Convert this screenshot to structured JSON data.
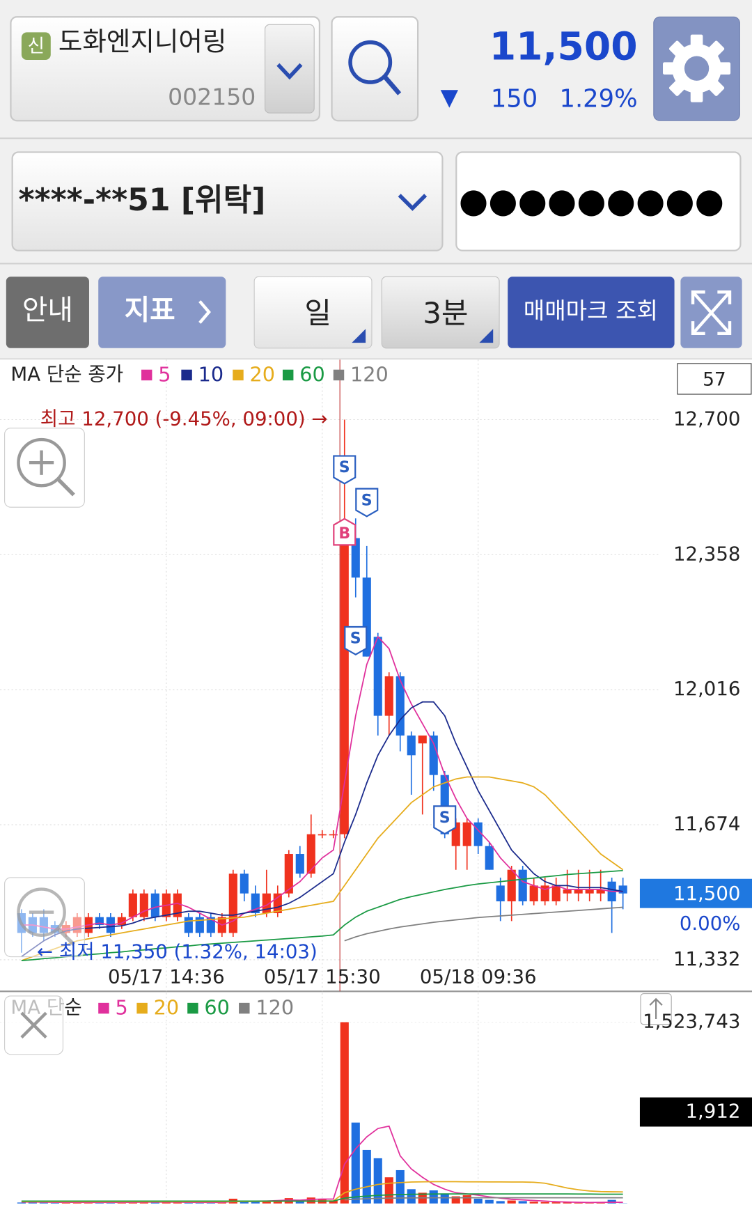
{
  "header": {
    "badge": "신",
    "name": "도화엔지니어링",
    "code": "002150",
    "price": "11,500",
    "change_arrow": "▼",
    "change": "150",
    "change_rate": "1.29%"
  },
  "account": {
    "number": "****-**51 [위탁]",
    "password": "●●●●●●●●●"
  },
  "toolbar": {
    "info": "안내",
    "indicator": "지표",
    "period": "일",
    "interval": "3분",
    "trade_marks": "매매마크 조회"
  },
  "chart_data": [
    {
      "type": "candlestick",
      "legend_title": "MA 단순 종가",
      "count_box": "57",
      "categories": [
        null,
        null,
        null,
        null,
        null,
        null,
        null,
        null,
        null,
        null,
        null,
        null,
        null,
        "05/17 14:36",
        null,
        null,
        null,
        null,
        null,
        null,
        null,
        null,
        null,
        null,
        null,
        null,
        null,
        "05/17 15:30",
        null,
        null,
        null,
        null,
        null,
        null,
        null,
        null,
        null,
        null,
        null,
        null,
        null,
        "05/18 09:36",
        null,
        null,
        null,
        null,
        null,
        null,
        null,
        null,
        null,
        null,
        null,
        null,
        null
      ],
      "open": [
        11450,
        11440,
        11440,
        11420,
        11400,
        11400,
        11400,
        11440,
        11440,
        11420,
        11440,
        11440,
        11500,
        11440,
        11440,
        11440,
        11440,
        11440,
        11400,
        11400,
        11550,
        11500,
        11450,
        11450,
        11500,
        11600,
        11550,
        11650,
        11650,
        11650,
        12400,
        12300,
        12150,
        11950,
        12050,
        11900,
        11880,
        11900,
        11800,
        11620,
        11620,
        11680,
        11620,
        11520,
        11480,
        11560,
        11480,
        11480,
        11480,
        11500,
        11500,
        11500,
        11500,
        11530,
        11520
      ],
      "high": [
        11460,
        11450,
        11460,
        11430,
        11430,
        11450,
        11450,
        11450,
        11450,
        11450,
        11510,
        11510,
        11510,
        11510,
        11510,
        11450,
        11450,
        11450,
        11450,
        11560,
        11560,
        11520,
        11560,
        11520,
        11610,
        11620,
        11700,
        11660,
        11660,
        12700,
        12450,
        12380,
        12160,
        12060,
        12060,
        11910,
        11900,
        11910,
        11810,
        11690,
        11690,
        11690,
        11630,
        11540,
        11570,
        11570,
        11540,
        11540,
        11540,
        11560,
        11560,
        11560,
        11560,
        11540,
        11540
      ],
      "low": [
        11350,
        11390,
        11380,
        11390,
        11390,
        11390,
        11390,
        11410,
        11390,
        11410,
        11430,
        11430,
        11430,
        11430,
        11430,
        11390,
        11390,
        11390,
        11390,
        11390,
        11480,
        11440,
        11440,
        11440,
        11490,
        11540,
        11540,
        11640,
        11640,
        11640,
        12250,
        12100,
        11900,
        11900,
        11860,
        11750,
        11700,
        11760,
        11640,
        11560,
        11560,
        11600,
        11560,
        11430,
        11430,
        11470,
        11470,
        11470,
        11470,
        11480,
        11480,
        11480,
        11480,
        11400,
        11460
      ],
      "close": [
        11400,
        11400,
        11400,
        11400,
        11420,
        11440,
        11440,
        11420,
        11400,
        11440,
        11500,
        11500,
        11440,
        11500,
        11500,
        11400,
        11400,
        11400,
        11440,
        11550,
        11500,
        11450,
        11500,
        11500,
        11600,
        11550,
        11650,
        11650,
        11650,
        12400,
        12300,
        12100,
        11950,
        12050,
        11900,
        11850,
        11900,
        11800,
        11650,
        11680,
        11680,
        11620,
        11560,
        11480,
        11560,
        11480,
        11520,
        11520,
        11520,
        11510,
        11510,
        11510,
        11510,
        11480,
        11500
      ],
      "up_color": "#f0321e",
      "down_color": "#1f6fe0",
      "series": [
        {
          "name": "5",
          "color": "#e0309c",
          "values": [
            11420,
            11420,
            11415,
            11410,
            11410,
            11415,
            11420,
            11425,
            11420,
            11425,
            11440,
            11455,
            11465,
            11470,
            11475,
            11465,
            11450,
            11435,
            11420,
            11430,
            11450,
            11460,
            11470,
            11490,
            11510,
            11530,
            11560,
            11590,
            11610,
            11780,
            11950,
            12080,
            12150,
            12120,
            12040,
            11980,
            11930,
            11880,
            11800,
            11740,
            11690,
            11660,
            11630,
            11590,
            11560,
            11530,
            11520,
            11510,
            11520,
            11510,
            11510,
            11510,
            11510,
            11505,
            11505
          ]
        },
        {
          "name": "10",
          "color": "#1a2a8c",
          "values": [
            11340,
            11360,
            11380,
            11395,
            11405,
            11410,
            11412,
            11414,
            11416,
            11418,
            11425,
            11435,
            11440,
            11445,
            11450,
            11455,
            11455,
            11450,
            11445,
            11445,
            11450,
            11455,
            11460,
            11465,
            11475,
            11490,
            11510,
            11530,
            11550,
            11630,
            11700,
            11780,
            11850,
            11900,
            11940,
            11970,
            11985,
            11985,
            11950,
            11880,
            11820,
            11760,
            11710,
            11660,
            11610,
            11580,
            11550,
            11530,
            11520,
            11520,
            11515,
            11515,
            11515,
            11510,
            11505
          ]
        },
        {
          "name": "20",
          "color": "#e6ac1c",
          "values": [
            11330,
            11340,
            11350,
            11360,
            11370,
            11380,
            11385,
            11390,
            11395,
            11400,
            11405,
            11410,
            11415,
            11420,
            11425,
            11430,
            11432,
            11434,
            11436,
            11438,
            11440,
            11445,
            11450,
            11455,
            11460,
            11465,
            11470,
            11475,
            11480,
            11520,
            11560,
            11600,
            11640,
            11670,
            11700,
            11730,
            11750,
            11770,
            11780,
            11790,
            11795,
            11795,
            11795,
            11790,
            11785,
            11780,
            11770,
            11750,
            11720,
            11690,
            11660,
            11630,
            11600,
            11580,
            11560
          ]
        },
        {
          "name": "60",
          "color": "#1a9a44",
          "values": [
            11330,
            11332,
            11335,
            11337,
            11340,
            11342,
            11345,
            11347,
            11350,
            11352,
            11355,
            11357,
            11360,
            11362,
            11365,
            11367,
            11370,
            11372,
            11374,
            11376,
            11378,
            11380,
            11382,
            11384,
            11386,
            11388,
            11390,
            11392,
            11395,
            11420,
            11440,
            11455,
            11465,
            11475,
            11485,
            11492,
            11498,
            11504,
            11510,
            11515,
            11520,
            11524,
            11527,
            11530,
            11533,
            11536,
            11539,
            11542,
            11545,
            11548,
            11550,
            11552,
            11554,
            11556,
            11558
          ]
        },
        {
          "name": "120",
          "color": "#808080",
          "values": [
            null,
            null,
            null,
            null,
            null,
            null,
            null,
            null,
            null,
            null,
            null,
            null,
            null,
            null,
            null,
            null,
            null,
            null,
            null,
            null,
            null,
            null,
            null,
            null,
            null,
            null,
            null,
            null,
            null,
            11380,
            11390,
            11398,
            11404,
            11410,
            11415,
            11419,
            11423,
            11427,
            11430,
            11433,
            11436,
            11439,
            11441,
            11443,
            11445,
            11447,
            11449,
            11451,
            11453,
            11455,
            11457,
            11459,
            11461,
            11463,
            11465
          ]
        }
      ],
      "ylim": [
        11252,
        12852
      ],
      "yticks": [
        {
          "value": 12700,
          "label": "12,700"
        },
        {
          "value": 12358,
          "label": "12,358"
        },
        {
          "value": 12016,
          "label": "12,016"
        },
        {
          "value": 11674,
          "label": "11,674"
        },
        {
          "value": 11332,
          "label": "11,332"
        }
      ],
      "grid": true,
      "current": {
        "value": 11500,
        "label": "11,500",
        "change": "0.00%"
      },
      "annotations": [
        {
          "text": "최고 12,700 (-9.45%, 09:00) →",
          "index": 29,
          "value": 12700
        },
        {
          "text": "← 최저 11,350 (1.32%, 14:03)",
          "index": 0,
          "value": 11350
        }
      ],
      "trade_marks": [
        {
          "label": "S",
          "index": 29,
          "value": 12577
        },
        {
          "label": "S",
          "index": 31,
          "value": 12494
        },
        {
          "label": "B",
          "index": 29,
          "value": 12410
        },
        {
          "label": "S",
          "index": 30,
          "value": 12144
        },
        {
          "label": "S",
          "index": 38,
          "value": 11690
        }
      ]
    },
    {
      "type": "bar",
      "legend_title": "MA 단순",
      "values": [
        8000,
        15000,
        10000,
        6000,
        12000,
        9000,
        8000,
        7000,
        9000,
        10000,
        15000,
        12000,
        9000,
        11000,
        10000,
        8000,
        7000,
        9000,
        10000,
        40000,
        20000,
        15000,
        18000,
        25000,
        45000,
        30000,
        50000,
        35000,
        25000,
        1523743,
        680000,
        450000,
        380000,
        220000,
        280000,
        120000,
        90000,
        110000,
        80000,
        60000,
        70000,
        40000,
        30000,
        20000,
        25000,
        20000,
        15000,
        12000,
        10000,
        8000,
        6000,
        5000,
        8000,
        30000,
        1912
      ],
      "series": [
        {
          "name": "5",
          "color": "#e0309c",
          "values": [
            12000,
            12000,
            11000,
            10000,
            10000,
            10000,
            9000,
            9000,
            9000,
            9000,
            10000,
            11000,
            11000,
            11000,
            11000,
            10000,
            9000,
            9000,
            9000,
            16000,
            19000,
            20000,
            21000,
            24000,
            29000,
            27000,
            34000,
            37000,
            37000,
            330000,
            460000,
            560000,
            630000,
            650000,
            400000,
            290000,
            220000,
            160000,
            120000,
            90000,
            80000,
            70000,
            55000,
            45000,
            35000,
            30000,
            25000,
            20000,
            15000,
            12000,
            10000,
            8000,
            9000,
            10000,
            10000
          ]
        },
        {
          "name": "20",
          "color": "#e6ac1c",
          "values": [
            15000,
            15000,
            15000,
            15000,
            15000,
            15000,
            15000,
            15000,
            15000,
            15000,
            15000,
            15000,
            15000,
            15000,
            15000,
            15000,
            15000,
            15000,
            15000,
            16000,
            16000,
            17000,
            17000,
            18000,
            19000,
            19000,
            20000,
            21000,
            22000,
            90000,
            120000,
            140000,
            160000,
            170000,
            175000,
            180000,
            182000,
            183000,
            183000,
            183000,
            182000,
            182000,
            181000,
            181000,
            180000,
            180000,
            178000,
            170000,
            150000,
            130000,
            115000,
            105000,
            100000,
            98000,
            97000
          ]
        },
        {
          "name": "60",
          "color": "#1a9a44",
          "values": [
            20000,
            20000,
            20000,
            20000,
            20000,
            20000,
            20000,
            20000,
            20000,
            20000,
            20000,
            20000,
            20000,
            20000,
            20000,
            20000,
            20000,
            20000,
            20000,
            20000,
            20000,
            20000,
            20000,
            20000,
            20000,
            20000,
            20000,
            20000,
            20000,
            45000,
            55000,
            62000,
            68000,
            72000,
            75000,
            77000,
            78000,
            79000,
            80000,
            80000,
            80000,
            80000,
            80000,
            80000,
            80000,
            80000,
            80000,
            80000,
            80000,
            80000,
            79000,
            79000,
            78000,
            78000,
            78000
          ]
        },
        {
          "name": "120",
          "color": "#808080",
          "values": [
            null,
            null,
            null,
            null,
            null,
            null,
            null,
            null,
            null,
            null,
            null,
            null,
            null,
            null,
            null,
            null,
            null,
            null,
            null,
            null,
            null,
            null,
            null,
            null,
            null,
            null,
            null,
            null,
            null,
            30000,
            36000,
            40000,
            43000,
            45000,
            46000,
            47000,
            47000,
            48000,
            48000,
            48000,
            48000,
            48000,
            48000,
            48000,
            48000,
            48000,
            48000,
            48000,
            48000,
            48000,
            48000,
            48000,
            48000,
            48000,
            48000
          ]
        }
      ],
      "ylim": [
        0,
        1770000
      ],
      "yticks": [
        {
          "value": 1523743,
          "label": "1,523,743"
        }
      ],
      "current_label": "1,912"
    }
  ]
}
